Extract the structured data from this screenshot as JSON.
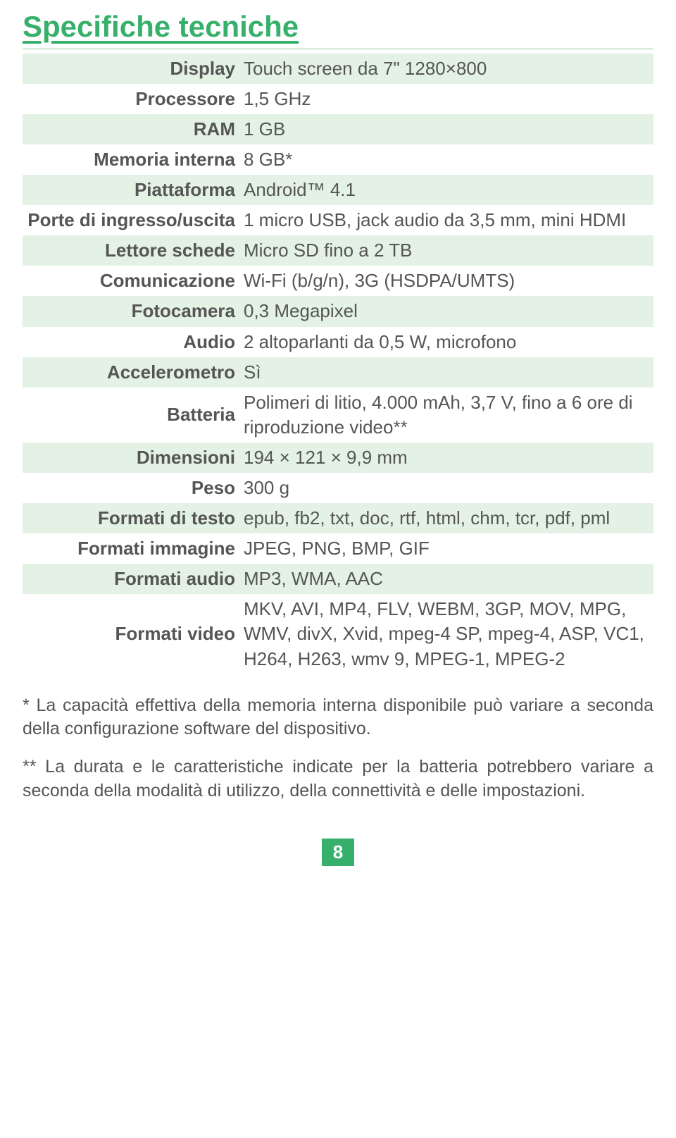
{
  "colors": {
    "accent": "#37b06b",
    "stripe": "#e3f2e5",
    "text": "#555555",
    "background": "#ffffff"
  },
  "title": "Specifiche tecniche",
  "spec_rows": [
    {
      "label": "Display",
      "value": "Touch screen da 7\" 1280×800"
    },
    {
      "label": "Processore",
      "value": "1,5 GHz"
    },
    {
      "label": "RAM",
      "value": "1 GB"
    },
    {
      "label": "Memoria interna",
      "value": "8 GB*"
    },
    {
      "label": "Piattaforma",
      "value": "Android™ 4.1"
    },
    {
      "label": "Porte di ingresso/uscita",
      "value": "1 micro USB, jack audio da 3,5 mm, mini HDMI"
    },
    {
      "label": "Lettore schede",
      "value": "Micro SD fino a 2 TB"
    },
    {
      "label": "Comunicazione",
      "value": "Wi-Fi (b/g/n), 3G (HSDPA/UMTS)"
    },
    {
      "label": "Fotocamera",
      "value": "0,3 Megapixel"
    },
    {
      "label": "Audio",
      "value": "2 altoparlanti da 0,5 W, microfono"
    },
    {
      "label": "Accelerometro",
      "value": "Sì"
    },
    {
      "label": "Batteria",
      "value": "Polimeri di litio, 4.000 mAh, 3,7 V, fino a 6 ore di riproduzione video**"
    },
    {
      "label": "Dimensioni",
      "value": "194 × 121 × 9,9 mm"
    },
    {
      "label": "Peso",
      "value": "300 g"
    },
    {
      "label": "Formati di testo",
      "value": "epub, fb2, txt, doc, rtf, html, chm, tcr, pdf, pml"
    },
    {
      "label": "Formati immagine",
      "value": "JPEG, PNG, BMP, GIF"
    },
    {
      "label": "Formati audio",
      "value": "MP3, WMA, AAC"
    },
    {
      "label": "Formati video",
      "value": "MKV, AVI, MP4, FLV, WEBM, 3GP, MOV, MPG, WMV, divX, Xvid, mpeg-4 SP, mpeg-4, ASP, VC1, H264, H263, wmv 9, MPEG-1, MPEG-2"
    }
  ],
  "footnotes": [
    "* La capacità effettiva della memoria interna disponibile può variare a seconda della configurazione software del dispositivo.",
    "** La durata e le caratteristiche indicate per la batteria potrebbero variare a seconda della modalità di utilizzo, della connettività e delle impostazioni."
  ],
  "page_number": "8"
}
